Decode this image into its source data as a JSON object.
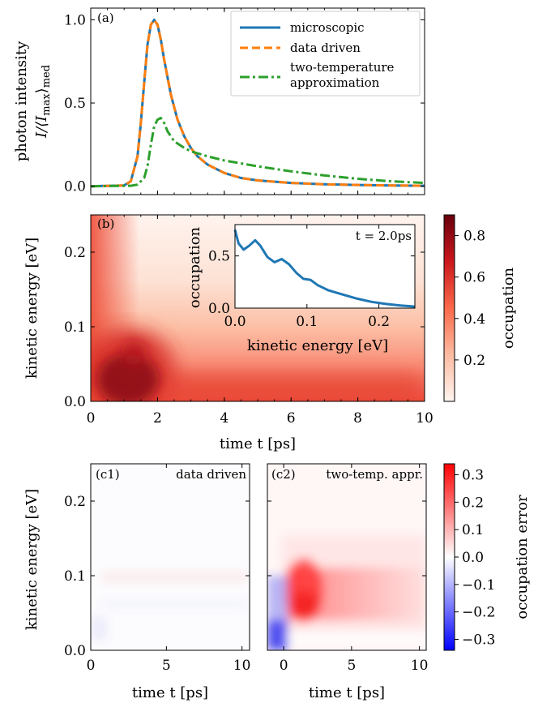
{
  "chart_data": [
    {
      "id": "a",
      "type": "line",
      "panel_label": "(a)",
      "ylabel_line1": "photon intensity",
      "ylabel_line2": "I/⟨I",
      "ylabel_sub1": "max",
      "ylabel_mid": "⟩",
      "ylabel_sub2": "med",
      "xlim": [
        0,
        10
      ],
      "ylim": [
        -0.05,
        1.07
      ],
      "yticks": [
        0.0,
        0.5,
        1.0
      ],
      "ytick_labels": [
        "0.0",
        "0.5",
        "1.0"
      ],
      "legend_position": "top-right",
      "series": [
        {
          "name": "microscopic",
          "color": "#1f77b4",
          "style": "solid",
          "x": [
            0,
            1.0,
            1.2,
            1.4,
            1.5,
            1.6,
            1.7,
            1.8,
            1.9,
            2.0,
            2.1,
            2.2,
            2.4,
            2.6,
            2.8,
            3.0,
            3.2,
            3.5,
            4.0,
            4.5,
            5.0,
            6.0,
            7.0,
            8.0,
            9.0,
            10.0
          ],
          "y": [
            0,
            0.005,
            0.03,
            0.18,
            0.38,
            0.62,
            0.85,
            0.97,
            1.0,
            0.97,
            0.88,
            0.76,
            0.55,
            0.4,
            0.3,
            0.23,
            0.18,
            0.13,
            0.08,
            0.05,
            0.035,
            0.02,
            0.012,
            0.008,
            0.005,
            0.003
          ]
        },
        {
          "name": "data driven",
          "color": "#ff7f0e",
          "style": "dashed",
          "x": [
            0,
            1.0,
            1.2,
            1.4,
            1.5,
            1.6,
            1.7,
            1.8,
            1.9,
            2.0,
            2.1,
            2.2,
            2.4,
            2.6,
            2.8,
            3.0,
            3.2,
            3.5,
            4.0,
            4.5,
            5.0,
            6.0,
            7.0,
            8.0,
            9.0,
            10.0
          ],
          "y": [
            0,
            0.005,
            0.03,
            0.18,
            0.38,
            0.62,
            0.85,
            0.97,
            1.0,
            0.97,
            0.88,
            0.76,
            0.55,
            0.4,
            0.3,
            0.23,
            0.18,
            0.13,
            0.08,
            0.05,
            0.035,
            0.02,
            0.012,
            0.008,
            0.005,
            0.003
          ]
        },
        {
          "name": "two-temperature approximation",
          "name_line1": "two-temperature",
          "name_line2": "approximation",
          "color": "#2ca02c",
          "style": "dashdot",
          "x": [
            0,
            1.2,
            1.4,
            1.6,
            1.7,
            1.8,
            1.9,
            2.0,
            2.1,
            2.2,
            2.3,
            2.5,
            2.8,
            3.0,
            3.5,
            4.0,
            5.0,
            6.0,
            7.0,
            8.0,
            9.0,
            10.0
          ],
          "y": [
            0,
            0.003,
            0.01,
            0.05,
            0.12,
            0.25,
            0.36,
            0.4,
            0.41,
            0.38,
            0.33,
            0.27,
            0.23,
            0.21,
            0.18,
            0.155,
            0.12,
            0.09,
            0.065,
            0.045,
            0.03,
            0.02
          ]
        }
      ]
    },
    {
      "id": "b",
      "type": "heatmap",
      "panel_label": "(b)",
      "xlabel": "time t [ps]",
      "ylabel": "kinetic energy [eV]",
      "xlim": [
        0,
        10
      ],
      "ylim": [
        0,
        0.25
      ],
      "xticks": [
        0,
        2,
        4,
        6,
        8,
        10
      ],
      "xtick_labels": [
        "0",
        "2",
        "4",
        "6",
        "8",
        "10"
      ],
      "yticks": [
        0.0,
        0.1,
        0.2
      ],
      "ytick_labels": [
        "0.0",
        "0.1",
        "0.2"
      ],
      "colormap": "Reds",
      "colorbar": {
        "label": "occupation",
        "range": [
          0,
          0.9
        ],
        "ticks": [
          0.2,
          0.4,
          0.6,
          0.8
        ],
        "tick_labels": [
          "0.2",
          "0.4",
          "0.6",
          "0.8"
        ]
      },
      "inset": {
        "type": "line",
        "annotation": "t = 2.0ps",
        "xlabel": "kinetic energy [eV]",
        "ylabel": "occupation",
        "xlim": [
          0,
          0.25
        ],
        "ylim": [
          0,
          0.8
        ],
        "xticks": [
          0.0,
          0.1,
          0.2
        ],
        "xtick_labels": [
          "0.0",
          "0.1",
          "0.2"
        ],
        "yticks": [
          0.0,
          0.5
        ],
        "ytick_labels": [
          "0.0",
          "0.5"
        ],
        "color": "#1f77b4",
        "x": [
          0,
          0.005,
          0.012,
          0.02,
          0.028,
          0.035,
          0.045,
          0.055,
          0.065,
          0.075,
          0.085,
          0.095,
          0.105,
          0.115,
          0.13,
          0.15,
          0.17,
          0.19,
          0.21,
          0.23,
          0.25
        ],
        "y": [
          0.75,
          0.62,
          0.56,
          0.6,
          0.65,
          0.6,
          0.49,
          0.44,
          0.47,
          0.42,
          0.34,
          0.28,
          0.27,
          0.22,
          0.17,
          0.13,
          0.09,
          0.06,
          0.04,
          0.025,
          0.015
        ]
      }
    },
    {
      "id": "c1",
      "type": "heatmap",
      "panel_label": "(c1)",
      "title": "data driven",
      "xlabel": "time t [ps]",
      "ylabel": "kinetic energy [eV]",
      "xlim": [
        0,
        10.5
      ],
      "ylim": [
        0,
        0.25
      ],
      "xticks": [
        0,
        5,
        10
      ],
      "xtick_labels": [
        "0",
        "5",
        "10"
      ],
      "yticks": [
        0.0,
        0.1,
        0.2
      ],
      "ytick_labels": [
        "0.0",
        "0.1",
        "0.2"
      ],
      "colormap": "bwr"
    },
    {
      "id": "c2",
      "type": "heatmap",
      "panel_label": "(c2)",
      "title": "two-temp. appr.",
      "xlabel": "time t [ps]",
      "xlim": [
        -1.2,
        10.5
      ],
      "ylim": [
        0,
        0.25
      ],
      "xticks": [
        0,
        5,
        10
      ],
      "xtick_labels": [
        "0",
        "5",
        "10"
      ],
      "colormap": "bwr",
      "colorbar": {
        "label": "occupation error",
        "range": [
          -0.34,
          0.34
        ],
        "ticks": [
          0.3,
          0.2,
          0.1,
          0.0,
          -0.1,
          -0.2,
          -0.3
        ],
        "tick_labels": [
          "0.3",
          "0.2",
          "0.1",
          "0.0",
          "−0.1",
          "−0.2",
          "−0.3"
        ]
      }
    }
  ]
}
